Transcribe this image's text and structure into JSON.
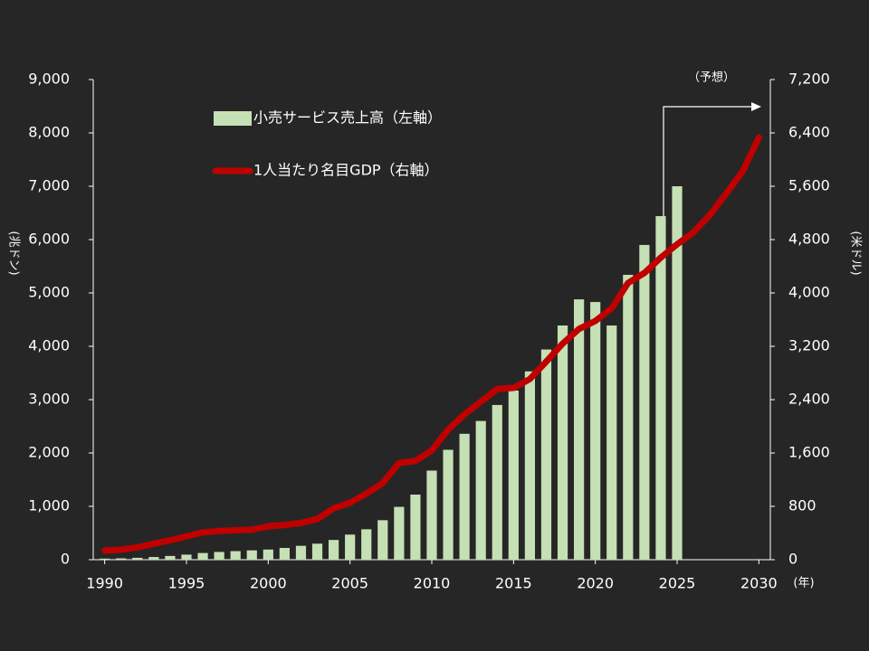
{
  "chart_data": {
    "type": "bar-line",
    "y_label": "(兆ドン)",
    "y2_label": "(米ドル)",
    "x_unit": "(年)",
    "annotation": "（予想）",
    "x": [
      1990,
      1991,
      1992,
      1993,
      1994,
      1995,
      1996,
      1997,
      1998,
      1999,
      2000,
      2001,
      2002,
      2003,
      2004,
      2005,
      2006,
      2007,
      2008,
      2009,
      2010,
      2011,
      2012,
      2013,
      2014,
      2015,
      2016,
      2017,
      2018,
      2019,
      2020,
      2021,
      2022,
      2023,
      2024,
      2025,
      2026,
      2027,
      2028,
      2029,
      2030
    ],
    "series": [
      {
        "name": "小売サービス売上高（左軸）",
        "type": "bar",
        "color": "#c5e0b4",
        "values": [
          20,
          25,
          35,
          50,
          70,
          95,
          125,
          145,
          160,
          175,
          190,
          220,
          260,
          300,
          370,
          470,
          570,
          740,
          990,
          1220,
          1670,
          2060,
          2360,
          2600,
          2900,
          3170,
          3530,
          3940,
          4390,
          4880,
          4830,
          4390,
          5340,
          5900,
          6440,
          7000,
          null,
          null,
          null,
          null,
          null
        ]
      },
      {
        "name": "1人当たり名目GDP（右軸）",
        "type": "line",
        "axis": "y2",
        "color": "#c00000",
        "values": [
          136,
          150,
          185,
          240,
          290,
          350,
          410,
          430,
          440,
          450,
          500,
          520,
          550,
          610,
          770,
          854,
          990,
          1150,
          1450,
          1480,
          1640,
          1950,
          2180,
          2370,
          2560,
          2576,
          2710,
          2970,
          3240,
          3460,
          3580,
          3770,
          4150,
          4300,
          4530,
          4730,
          4910,
          5170,
          5490,
          5820,
          6330
        ]
      }
    ],
    "xlim": [
      1989.3,
      2030.7
    ],
    "xticks": [
      1990,
      1995,
      2000,
      2005,
      2010,
      2015,
      2020,
      2025,
      2030
    ],
    "ylim": [
      0,
      9000
    ],
    "yticks": [
      0,
      {
        "value": 1000,
        "label": "1,000"
      },
      {
        "value": 2000,
        "label": "2,000"
      },
      {
        "value": 3000,
        "label": "3,000"
      },
      {
        "value": 4000,
        "label": "4,000"
      },
      {
        "value": 5000,
        "label": "5,000"
      },
      {
        "value": 6000,
        "label": "6,000"
      },
      {
        "value": 7000,
        "label": "7,000"
      },
      {
        "value": 8000,
        "label": "8,000"
      },
      {
        "value": 9000,
        "label": "9,000"
      }
    ],
    "y2lim": [
      0,
      7200
    ],
    "y2ticks": [
      0,
      800,
      {
        "value": 1600,
        "label": "1,600"
      },
      {
        "value": 2400,
        "label": "2,400"
      },
      {
        "value": 3200,
        "label": "3,200"
      },
      {
        "value": 4000,
        "label": "4,000"
      },
      {
        "value": 4800,
        "label": "4,800"
      },
      {
        "value": 5600,
        "label": "5,600"
      },
      {
        "value": 6400,
        "label": "6,400"
      },
      {
        "value": 7200,
        "label": "7,200"
      }
    ]
  }
}
